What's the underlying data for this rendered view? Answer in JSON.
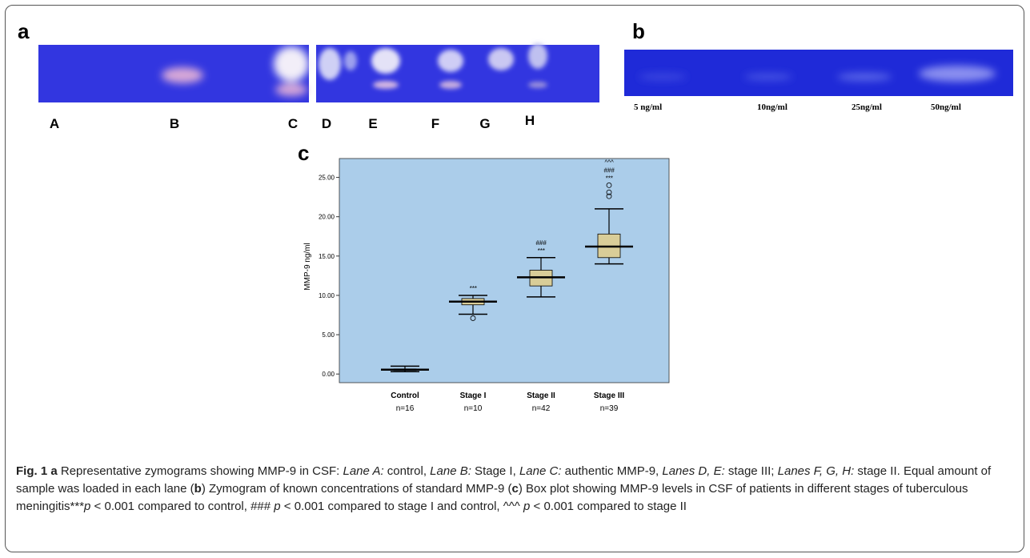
{
  "panel_a": {
    "label": "a",
    "lanes": [
      "A",
      "B",
      "C",
      "D",
      "E",
      "F",
      "G",
      "H"
    ]
  },
  "panel_b": {
    "label": "b",
    "concentrations": [
      "5 ng/ml",
      "10ng/ml",
      "25ng/ml",
      "50ng/ml"
    ]
  },
  "panel_c": {
    "label": "c"
  },
  "chart_data": {
    "type": "box",
    "ylabel": "MMP-9 ng/ml",
    "categories": [
      "Control",
      "Stage I",
      "Stage II",
      "Stage III"
    ],
    "n_labels": [
      "n=16",
      "n=10",
      "n=42",
      "n=39"
    ],
    "boxes": [
      {
        "min": 0.3,
        "q1": 0.45,
        "median": 0.55,
        "q3": 0.65,
        "max": 1.0,
        "outliers": []
      },
      {
        "min": 7.6,
        "q1": 8.8,
        "median": 9.2,
        "q3": 9.6,
        "max": 10.0,
        "outliers": [
          7.1
        ]
      },
      {
        "min": 9.8,
        "q1": 11.2,
        "median": 12.3,
        "q3": 13.2,
        "max": 14.8,
        "outliers": []
      },
      {
        "min": 14.0,
        "q1": 14.8,
        "median": 16.2,
        "q3": 17.8,
        "max": 21.0,
        "outliers": [
          22.6,
          23.1,
          24.0
        ]
      }
    ],
    "annotations": [
      [],
      [
        "***"
      ],
      [
        "***",
        "###"
      ],
      [
        "***",
        "###",
        "^^^"
      ]
    ],
    "box_color": "#d9cd98",
    "background": "#abcdea",
    "ylim": [
      -1.1,
      27.4
    ],
    "yticks": [
      {
        "value": 0,
        "label": "0.00"
      },
      {
        "value": 5,
        "label": "5.00"
      },
      {
        "value": 10,
        "label": "10.00"
      },
      {
        "value": 15,
        "label": "15.00"
      },
      {
        "value": 20,
        "label": "20.00"
      },
      {
        "value": 25,
        "label": "25.00"
      }
    ]
  },
  "caption": [
    {
      "text": "Fig. 1 a",
      "style": "bold"
    },
    {
      "text": " Representative zymograms showing MMP-9 in CSF: ",
      "style": "normal"
    },
    {
      "text": "Lane A:",
      "style": "italic"
    },
    {
      "text": " control, ",
      "style": "normal"
    },
    {
      "text": "Lane B:",
      "style": "italic"
    },
    {
      "text": " Stage I, ",
      "style": "normal"
    },
    {
      "text": "Lane C:",
      "style": "italic"
    },
    {
      "text": " authentic MMP-9, ",
      "style": "normal"
    },
    {
      "text": "Lanes D, E:",
      "style": "italic"
    },
    {
      "text": " stage III; ",
      "style": "normal"
    },
    {
      "text": "Lanes F, G, H:",
      "style": "italic"
    },
    {
      "text": " stage II. Equal amount of sample was loaded in each lane (",
      "style": "normal"
    },
    {
      "text": "b",
      "style": "bold"
    },
    {
      "text": ") Zymogram of known concentrations of standard MMP-9 (",
      "style": "normal"
    },
    {
      "text": "c",
      "style": "bold"
    },
    {
      "text": ") Box plot showing MMP-9 levels in CSF of patients in different stages of tuberculous meningitis***",
      "style": "normal"
    },
    {
      "text": "p",
      "style": "italic"
    },
    {
      "text": " < 0.001 compared to control, ### ",
      "style": "normal"
    },
    {
      "text": "p",
      "style": "italic"
    },
    {
      "text": " < 0.001 compared to stage I and control, ^^^ ",
      "style": "normal"
    },
    {
      "text": "p",
      "style": "italic"
    },
    {
      "text": " < 0.001 compared to stage II",
      "style": "normal"
    }
  ]
}
